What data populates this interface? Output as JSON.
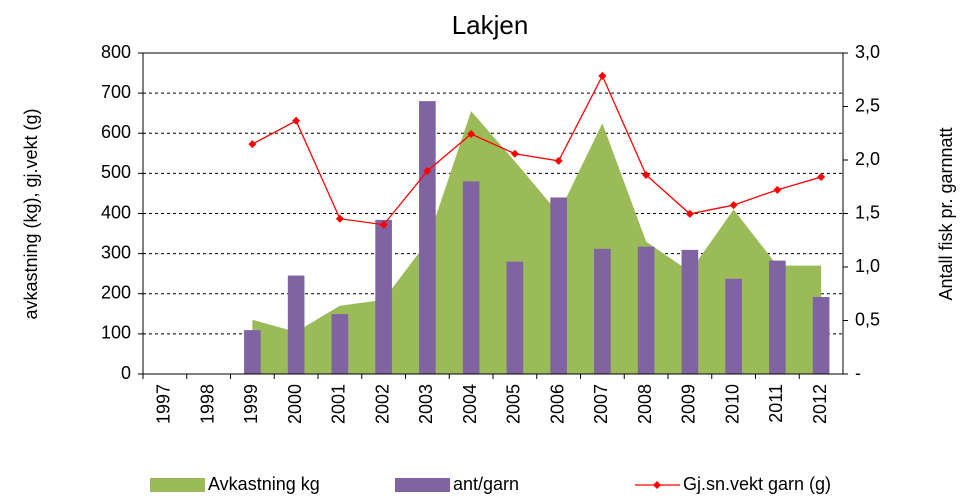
{
  "chart_data": {
    "type": "combo",
    "title": "Lakjen",
    "y_label": "avkastning (kg), gj.vekt (g)",
    "y2_label": "Antall fisk pr. garnnatt",
    "categories": [
      "1997",
      "1998",
      "1999",
      "2000",
      "2001",
      "2002",
      "2003",
      "2004",
      "2005",
      "2006",
      "2007",
      "2008",
      "2009",
      "2010",
      "2011",
      "2012"
    ],
    "ylim": [
      0,
      800
    ],
    "yticks": [
      0,
      100,
      200,
      300,
      400,
      500,
      600,
      700,
      800
    ],
    "y2lim": [
      0,
      3
    ],
    "y2ticks": [
      {
        "value": 0,
        "label": "-"
      },
      {
        "value": 0.5,
        "label": "0,5"
      },
      {
        "value": 1,
        "label": "1,0"
      },
      {
        "value": 1.5,
        "label": "1,5"
      },
      {
        "value": 2,
        "label": "2,0"
      },
      {
        "value": 2.5,
        "label": "2,5"
      },
      {
        "value": 3,
        "label": "3,0"
      }
    ],
    "grid": true,
    "series": [
      {
        "name": "Avkastning kg",
        "type": "area",
        "color": "#9bbb59",
        "values": [
          null,
          null,
          135,
          105,
          170,
          185,
          330,
          655,
          530,
          400,
          625,
          330,
          255,
          410,
          270,
          270
        ]
      },
      {
        "name": "ant/garn",
        "type": "bar",
        "color": "#8064a2",
        "axis": "y2",
        "values": [
          null,
          null,
          0.41,
          0.92,
          0.56,
          1.44,
          2.55,
          1.8,
          1.05,
          1.65,
          1.17,
          1.19,
          1.16,
          0.89,
          1.06,
          0.72
        ]
      },
      {
        "name": "Gj.sn.vekt garn (g)",
        "type": "line",
        "color": "#ff0000",
        "values": [
          null,
          null,
          573,
          631,
          387,
          372,
          506,
          598,
          549,
          531,
          743,
          496,
          399,
          421,
          459,
          491
        ]
      }
    ]
  }
}
